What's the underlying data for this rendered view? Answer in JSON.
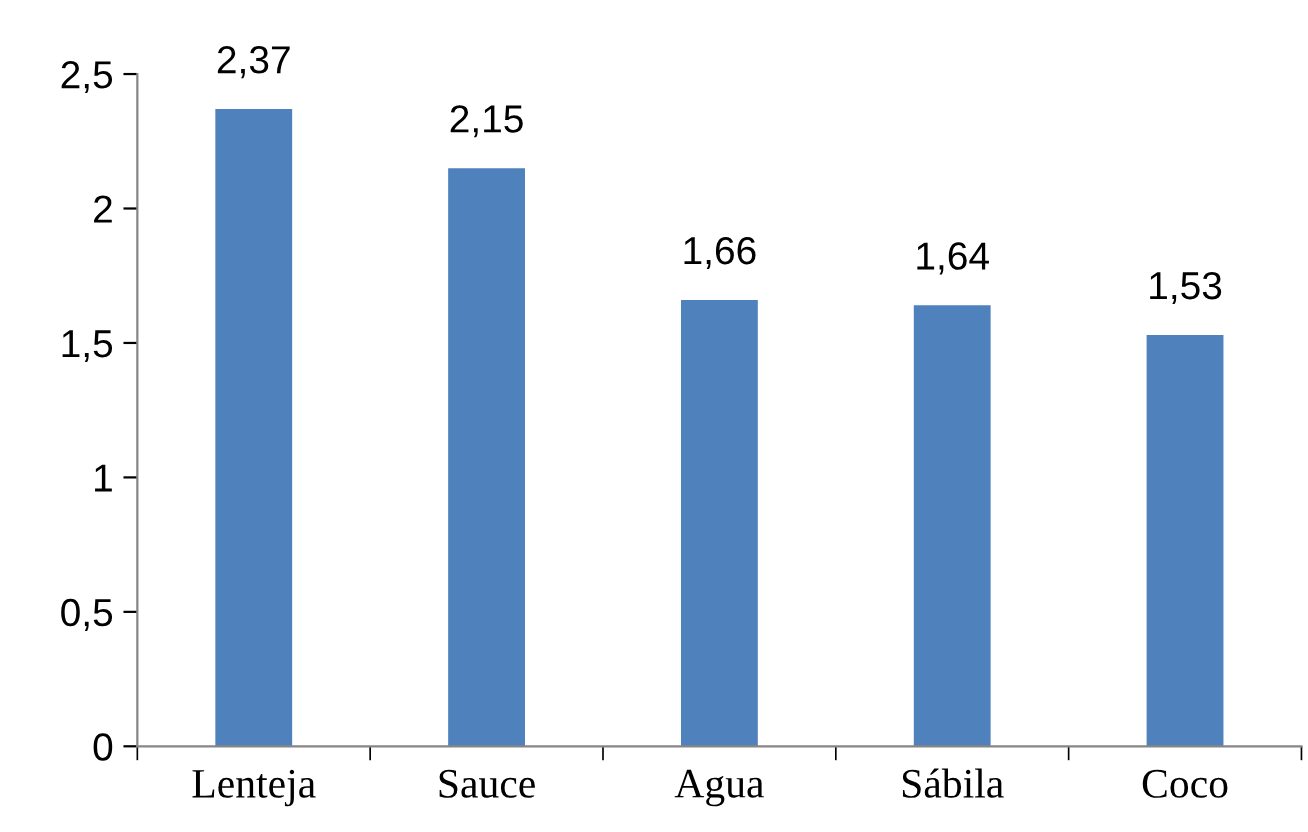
{
  "chart_data": {
    "type": "bar",
    "categories": [
      "Lenteja",
      "Sauce",
      "Agua",
      "Sábila",
      "Coco"
    ],
    "values": [
      2.37,
      2.15,
      1.66,
      1.64,
      1.53
    ],
    "value_labels": [
      "2,37",
      "2,15",
      "1,66",
      "1,64",
      "1,53"
    ],
    "color": "#4f81bd",
    "ylim": [
      0,
      2.5
    ],
    "yticks": [
      0,
      {
        "value": 0.5,
        "label": "0,5"
      },
      1,
      {
        "value": 1.5,
        "label": "1,5"
      },
      2,
      {
        "value": 2.5,
        "label": "2,5"
      }
    ],
    "grid": false,
    "legend": false
  }
}
